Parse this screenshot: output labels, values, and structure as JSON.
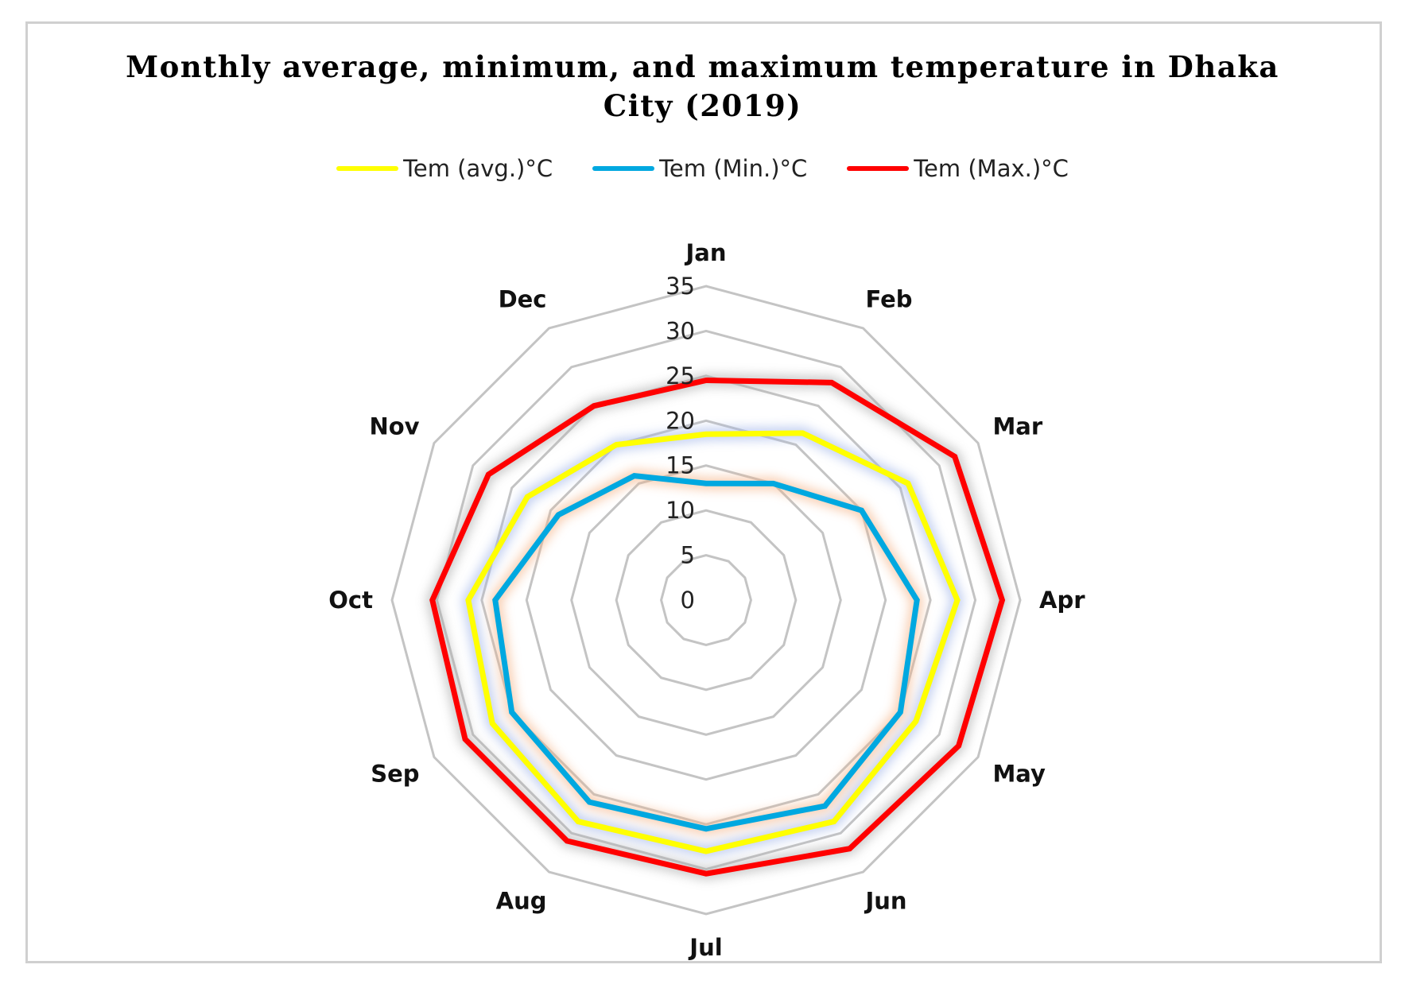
{
  "chart_data": {
    "type": "radar",
    "title_line1": "Monthly average, minimum, and maximum temperature in Dhaka",
    "title_line2": "City (2019)",
    "categories": [
      "Jan",
      "Feb",
      "Mar",
      "Apr",
      "May",
      "Jun",
      "Jul",
      "Aug",
      "Sep",
      "Oct",
      "Nov",
      "Dec"
    ],
    "r_ticks": [
      "0",
      "5",
      "10",
      "15",
      "20",
      "25",
      "30",
      "35"
    ],
    "r_range": [
      0,
      35
    ],
    "grid": true,
    "legend_position": "top",
    "series": [
      {
        "name": "Tem (avg.)°C",
        "color": "#ffff00",
        "values": [
          18.5,
          21.5,
          26,
          28,
          27,
          28.5,
          28,
          28.5,
          27.5,
          26.5,
          23,
          20
        ]
      },
      {
        "name": "Tem (Min.)°C",
        "color": "#00a8e0",
        "values": [
          13,
          15,
          20,
          23.5,
          25,
          26.5,
          25.5,
          26,
          25,
          23.5,
          19,
          16
        ]
      },
      {
        "name": "Tem (Max.)°C",
        "color": "#ff0000",
        "values": [
          24.5,
          28,
          32,
          33,
          32.5,
          32,
          30.5,
          31,
          31,
          30.5,
          28,
          25
        ]
      }
    ]
  }
}
